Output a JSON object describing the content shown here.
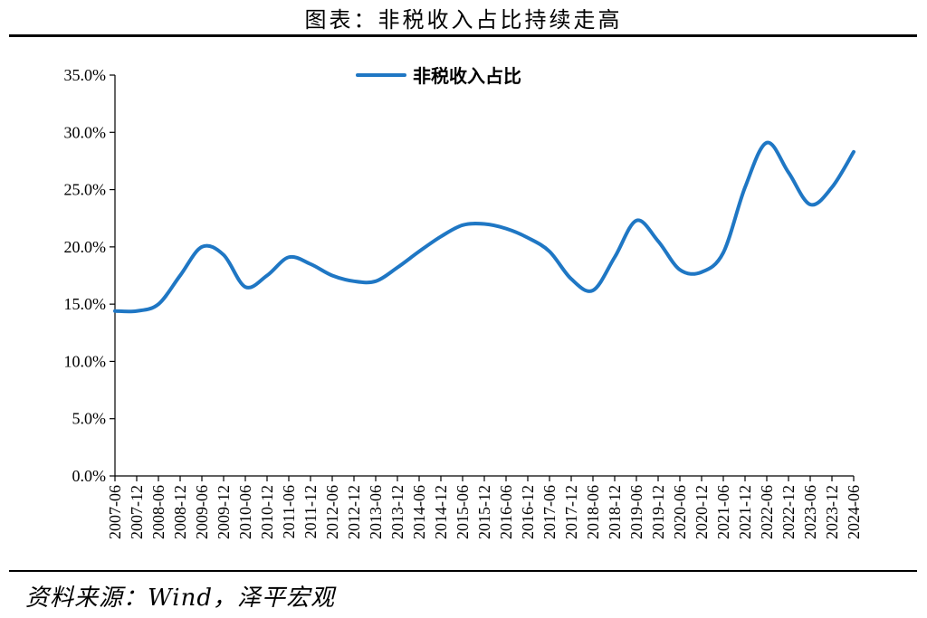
{
  "header": {
    "title": "图表：非税收入占比持续走高"
  },
  "footer": {
    "source": "资料来源：Wind，泽平宏观"
  },
  "chart_data": {
    "type": "line",
    "title": "图表：非税收入占比持续走高",
    "xlabel": "",
    "ylabel": "",
    "ylim": [
      0,
      35
    ],
    "y_ticks": [
      "0.0%",
      "5.0%",
      "10.0%",
      "15.0%",
      "20.0%",
      "25.0%",
      "30.0%",
      "35.0%"
    ],
    "y_tick_values": [
      0,
      5,
      10,
      15,
      20,
      25,
      30,
      35
    ],
    "grid": false,
    "legend_position": "top-center",
    "categories": [
      "2007-06",
      "2007-12",
      "2008-06",
      "2008-12",
      "2009-06",
      "2009-12",
      "2010-06",
      "2010-12",
      "2011-06",
      "2011-12",
      "2012-06",
      "2012-12",
      "2013-06",
      "2013-12",
      "2014-06",
      "2014-12",
      "2015-06",
      "2015-12",
      "2016-06",
      "2016-12",
      "2017-06",
      "2017-12",
      "2018-06",
      "2018-12",
      "2019-06",
      "2019-12",
      "2020-06",
      "2020-12",
      "2021-06",
      "2021-12",
      "2022-06",
      "2022-12",
      "2023-06",
      "2023-12",
      "2024-06"
    ],
    "series": [
      {
        "name": "非税收入占比",
        "color": "#1f77c4",
        "values": [
          14.4,
          14.4,
          15.0,
          17.5,
          20.0,
          19.3,
          16.5,
          17.5,
          19.1,
          18.5,
          17.5,
          17.0,
          17.0,
          18.2,
          19.6,
          20.9,
          21.9,
          22.0,
          21.6,
          20.8,
          19.6,
          17.2,
          16.2,
          19.1,
          22.3,
          20.5,
          18.0,
          17.8,
          19.5,
          25.2,
          29.1,
          26.5,
          23.7,
          25.2,
          28.3
        ]
      }
    ]
  }
}
